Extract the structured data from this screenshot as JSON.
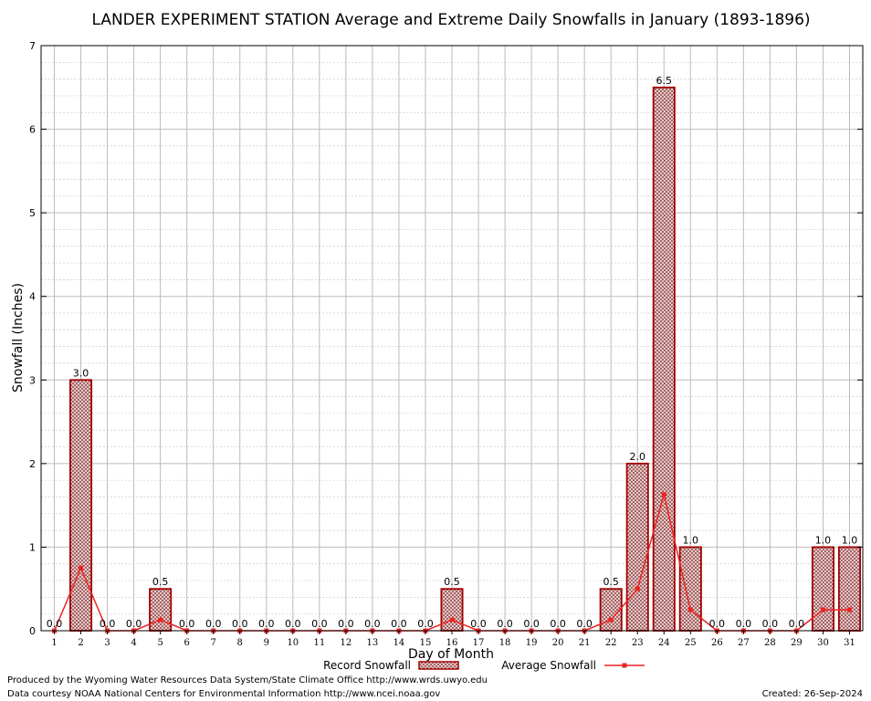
{
  "chart_data": {
    "type": "bar",
    "title": "LANDER EXPERIMENT STATION Average and Extreme Daily Snowfalls in January (1893-1896)",
    "xlabel": "Day of Month",
    "ylabel": "Snowfall (Inches)",
    "ylim": [
      0,
      7
    ],
    "yticks": [
      "0",
      "1",
      "2",
      "3",
      "4",
      "5",
      "6",
      "7"
    ],
    "categories": [
      "1",
      "2",
      "3",
      "4",
      "5",
      "6",
      "7",
      "8",
      "9",
      "10",
      "11",
      "12",
      "13",
      "14",
      "15",
      "16",
      "17",
      "18",
      "19",
      "20",
      "21",
      "22",
      "23",
      "24",
      "25",
      "26",
      "27",
      "28",
      "29",
      "30",
      "31"
    ],
    "series": [
      {
        "name": "Record Snowfall",
        "kind": "bar",
        "values": [
          0.0,
          3.0,
          0.0,
          0.0,
          0.5,
          0.0,
          0.0,
          0.0,
          0.0,
          0.0,
          0.0,
          0.0,
          0.0,
          0.0,
          0.0,
          0.5,
          0.0,
          0.0,
          0.0,
          0.0,
          0.0,
          0.5,
          2.0,
          6.5,
          1.0,
          0.0,
          0.0,
          0.0,
          0.0,
          1.0,
          1.0
        ],
        "labels": [
          "0.0",
          "3.0",
          "0.0",
          "0.0",
          "0.5",
          "0.0",
          "0.0",
          "0.0",
          "0.0",
          "0.0",
          "0.0",
          "0.0",
          "0.0",
          "0.0",
          "0.0",
          "0.5",
          "0.0",
          "0.0",
          "0.0",
          "0.0",
          "0.0",
          "0.5",
          "2.0",
          "6.5",
          "1.0",
          "0.0",
          "0.0",
          "0.0",
          "0.0",
          "1.0",
          "1.0"
        ],
        "color": "#a00000"
      },
      {
        "name": "Average Snowfall",
        "kind": "line",
        "values": [
          0.0,
          0.75,
          0.0,
          0.0,
          0.13,
          0.0,
          0.0,
          0.0,
          0.0,
          0.0,
          0.0,
          0.0,
          0.0,
          0.0,
          0.0,
          0.13,
          0.0,
          0.0,
          0.0,
          0.0,
          0.0,
          0.13,
          0.5,
          1.63,
          0.25,
          0.0,
          0.0,
          0.0,
          0.0,
          0.25,
          0.25
        ],
        "color": "#ee2222"
      }
    ],
    "grid": true,
    "legend_position": "bottom-center"
  },
  "footer": {
    "line1": "Produced by the Wyoming Water Resources Data System/State Climate Office http://www.wrds.uwyo.edu",
    "line2": "Data courtesy NOAA National Centers for Environmental Information http://www.ncei.noaa.gov",
    "created": "Created: 26-Sep-2024"
  }
}
